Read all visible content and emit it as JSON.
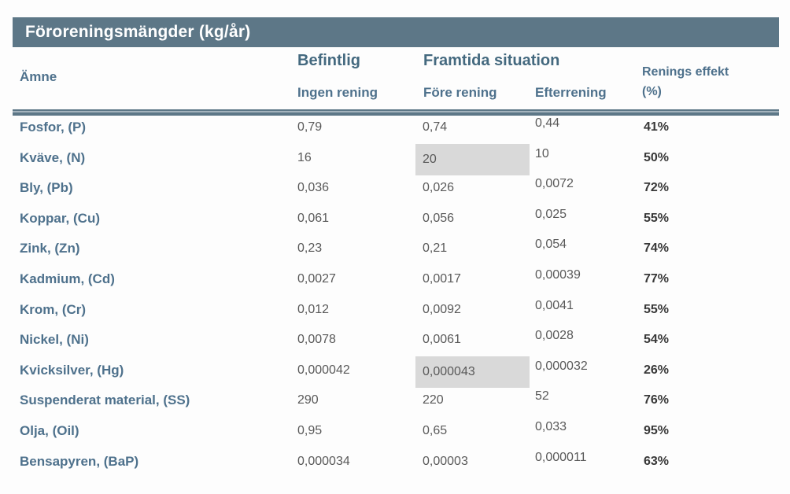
{
  "title": "Föroreningsmängder (kg/år)",
  "headers": {
    "substance": "Ämne",
    "group_existing": "Befintlig",
    "group_future": "Framtida situation",
    "no_treatment": "Ingen rening",
    "before_treatment": "Före rening",
    "after_treatment": "Efterrening",
    "effect_line1": "Renings effekt",
    "effect_line2": "(%)"
  },
  "rows": [
    {
      "substance": "Fosfor, (P)",
      "ingen_rening": "0,79",
      "fore_rening": "0,74",
      "efterrening": "0,44",
      "effekt": "41%",
      "highlight_fore": false
    },
    {
      "substance": "Kväve, (N)",
      "ingen_rening": "16",
      "fore_rening": "20",
      "efterrening": "10",
      "effekt": "50%",
      "highlight_fore": true
    },
    {
      "substance": "Bly, (Pb)",
      "ingen_rening": "0,036",
      "fore_rening": "0,026",
      "efterrening": "0,0072",
      "effekt": "72%",
      "highlight_fore": false
    },
    {
      "substance": "Koppar, (Cu)",
      "ingen_rening": "0,061",
      "fore_rening": "0,056",
      "efterrening": "0,025",
      "effekt": "55%",
      "highlight_fore": false
    },
    {
      "substance": "Zink, (Zn)",
      "ingen_rening": "0,23",
      "fore_rening": "0,21",
      "efterrening": "0,054",
      "effekt": "74%",
      "highlight_fore": false
    },
    {
      "substance": "Kadmium, (Cd)",
      "ingen_rening": "0,0027",
      "fore_rening": "0,0017",
      "efterrening": "0,00039",
      "effekt": "77%",
      "highlight_fore": false
    },
    {
      "substance": "Krom, (Cr)",
      "ingen_rening": "0,012",
      "fore_rening": "0,0092",
      "efterrening": "0,0041",
      "effekt": "55%",
      "highlight_fore": false
    },
    {
      "substance": "Nickel, (Ni)",
      "ingen_rening": "0,0078",
      "fore_rening": "0,0061",
      "efterrening": "0,0028",
      "effekt": "54%",
      "highlight_fore": false
    },
    {
      "substance": "Kvicksilver, (Hg)",
      "ingen_rening": "0,000042",
      "fore_rening": "0,000043",
      "efterrening": "0,000032",
      "effekt": "26%",
      "highlight_fore": true
    },
    {
      "substance": "Suspenderat material, (SS)",
      "ingen_rening": "290",
      "fore_rening": "220",
      "efterrening": "52",
      "effekt": "76%",
      "highlight_fore": false
    },
    {
      "substance": "Olja, (Oil)",
      "ingen_rening": "0,95",
      "fore_rening": "0,65",
      "efterrening": "0,033",
      "effekt": "95%",
      "highlight_fore": false
    },
    {
      "substance": "Bensapyren, (BaP)",
      "ingen_rening": "0,000034",
      "fore_rening": "0,00003",
      "efterrening": "0,000011",
      "effekt": "63%",
      "highlight_fore": false
    }
  ],
  "colors": {
    "accent_slate": "#5d7787",
    "header_text": "#4e718c",
    "value_text": "#595959",
    "percent_text": "#383838",
    "highlight": "#d9d9d9"
  }
}
